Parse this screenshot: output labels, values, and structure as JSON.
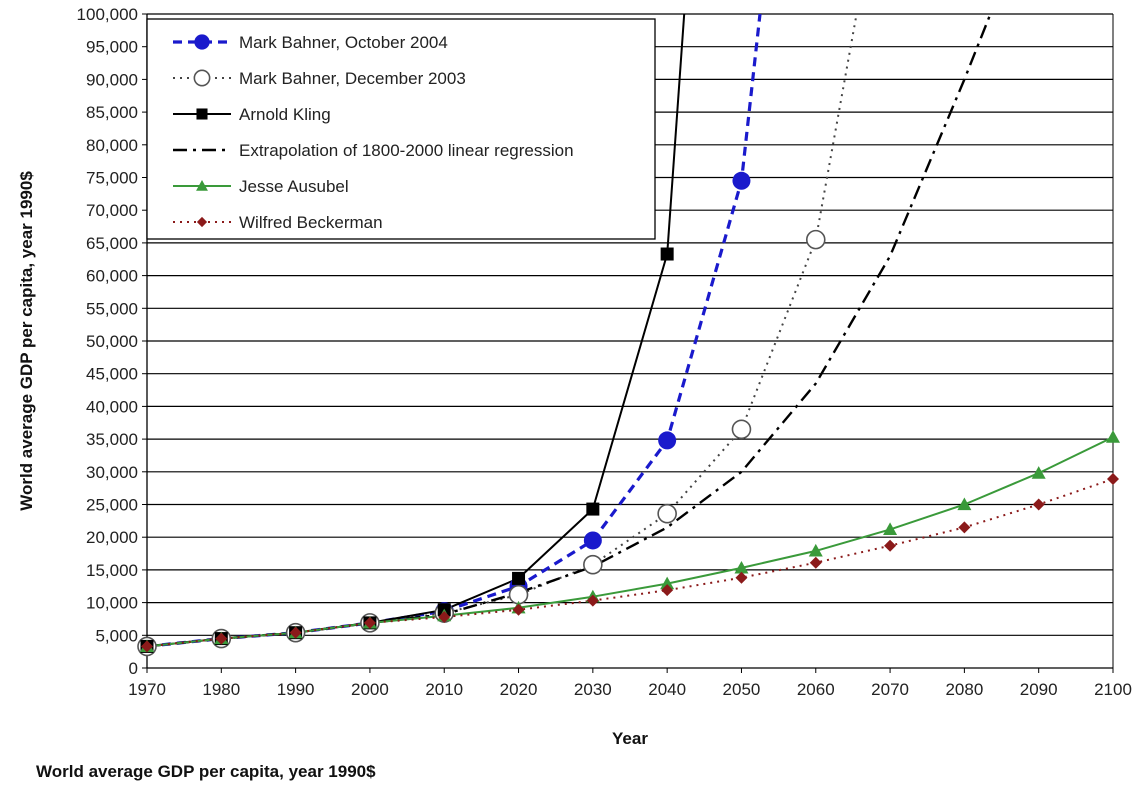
{
  "chart_data": {
    "type": "line",
    "title": "",
    "xlabel": "Year",
    "ylabel": "World average GDP per capita, year 1990$",
    "caption": "World average GDP per capita, year 1990$",
    "xlim": [
      1970,
      2100
    ],
    "ylim": [
      0,
      100000
    ],
    "x_ticks": [
      "1970",
      "1980",
      "1990",
      "2000",
      "2010",
      "2020",
      "2030",
      "2040",
      "2050",
      "2060",
      "2070",
      "2080",
      "2090",
      "2100"
    ],
    "y_ticks": [
      "0",
      "5,000",
      "10,000",
      "15,000",
      "20,000",
      "25,000",
      "30,000",
      "35,000",
      "40,000",
      "45,000",
      "50,000",
      "55,000",
      "60,000",
      "65,000",
      "70,000",
      "75,000",
      "80,000",
      "85,000",
      "90,000",
      "95,000",
      "100,000"
    ],
    "grid": "horizontal",
    "legend_position": "top-left",
    "series": [
      {
        "name": "Mark Bahner, October 2004",
        "color": "#1a1acc",
        "marker": "circle-filled",
        "line": "dash",
        "marker_x": [
          1970,
          1980,
          1990,
          2000,
          2010,
          2020,
          2030,
          2040,
          2050
        ],
        "marker_y": [
          3300,
          4500,
          5400,
          6900,
          8700,
          12500,
          19500,
          34800,
          74500
        ],
        "x": [
          1970,
          1980,
          1990,
          2000,
          2010,
          2020,
          2030,
          2040,
          2050,
          2052.5
        ],
        "y": [
          3300,
          4500,
          5400,
          6900,
          8700,
          12500,
          19500,
          34800,
          74500,
          100000
        ]
      },
      {
        "name": "Mark Bahner, December 2003",
        "color": "#444444",
        "marker": "circle-open",
        "line": "dot",
        "marker_x": [
          1970,
          1980,
          1990,
          2000,
          2010,
          2020,
          2030,
          2040,
          2050,
          2060
        ],
        "marker_y": [
          3300,
          4500,
          5400,
          6900,
          8400,
          11200,
          15800,
          23600,
          36500,
          65500
        ],
        "x": [
          1970,
          1980,
          1990,
          2000,
          2010,
          2020,
          2030,
          2040,
          2050,
          2060,
          2065.5
        ],
        "y": [
          3300,
          4500,
          5400,
          6900,
          8400,
          11200,
          15800,
          23600,
          36500,
          65500,
          100000
        ]
      },
      {
        "name": "Arnold Kling",
        "color": "#000000",
        "marker": "square",
        "line": "solid",
        "marker_x": [
          1970,
          1980,
          1990,
          2000,
          2010,
          2020,
          2030,
          2040
        ],
        "marker_y": [
          3300,
          4500,
          5400,
          6900,
          8900,
          13700,
          24300,
          63300
        ],
        "x": [
          1970,
          1980,
          1990,
          2000,
          2010,
          2020,
          2030,
          2040,
          2042.3
        ],
        "y": [
          3300,
          4500,
          5400,
          6900,
          8900,
          13700,
          24300,
          63300,
          100000
        ]
      },
      {
        "name": "Extrapolation of 1800-2000 linear regression",
        "color": "#000000",
        "marker": "none",
        "line": "dashdot",
        "marker_x": [],
        "marker_y": [],
        "x": [
          1970,
          1980,
          1990,
          2000,
          2010,
          2020,
          2030,
          2040,
          2050,
          2060,
          2070,
          2080,
          2083.5
        ],
        "y": [
          3300,
          4500,
          5400,
          6900,
          8200,
          11500,
          15500,
          21500,
          30000,
          43500,
          63000,
          90000,
          100000
        ]
      },
      {
        "name": "Jesse Ausubel",
        "color": "#3a9a3a",
        "marker": "triangle",
        "line": "solid",
        "marker_x": [
          1970,
          1980,
          1990,
          2000,
          2010,
          2020,
          2030,
          2040,
          2050,
          2060,
          2070,
          2080,
          2090,
          2100
        ],
        "marker_y": [
          3300,
          4500,
          5400,
          6900,
          8000,
          9200,
          10900,
          12900,
          15300,
          17900,
          21200,
          25000,
          29800,
          35300
        ],
        "x": [
          1970,
          1980,
          1990,
          2000,
          2010,
          2020,
          2030,
          2040,
          2050,
          2060,
          2070,
          2080,
          2090,
          2100
        ],
        "y": [
          3300,
          4500,
          5400,
          6900,
          8000,
          9200,
          10900,
          12900,
          15300,
          17900,
          21200,
          25000,
          29800,
          35300
        ]
      },
      {
        "name": "Wilfred Beckerman",
        "color": "#8b1a1a",
        "marker": "diamond",
        "line": "dot",
        "marker_x": [
          1970,
          1980,
          1990,
          2000,
          2010,
          2020,
          2030,
          2040,
          2050,
          2060,
          2070,
          2080,
          2090,
          2100
        ],
        "marker_y": [
          3300,
          4500,
          5400,
          6900,
          7800,
          8900,
          10300,
          11900,
          13800,
          16100,
          18700,
          21500,
          25000,
          28900
        ],
        "x": [
          1970,
          1980,
          1990,
          2000,
          2010,
          2020,
          2030,
          2040,
          2050,
          2060,
          2070,
          2080,
          2090,
          2100
        ],
        "y": [
          3300,
          4500,
          5400,
          6900,
          7800,
          8900,
          10300,
          11900,
          13800,
          16100,
          18700,
          21500,
          25000,
          28900
        ]
      }
    ]
  }
}
